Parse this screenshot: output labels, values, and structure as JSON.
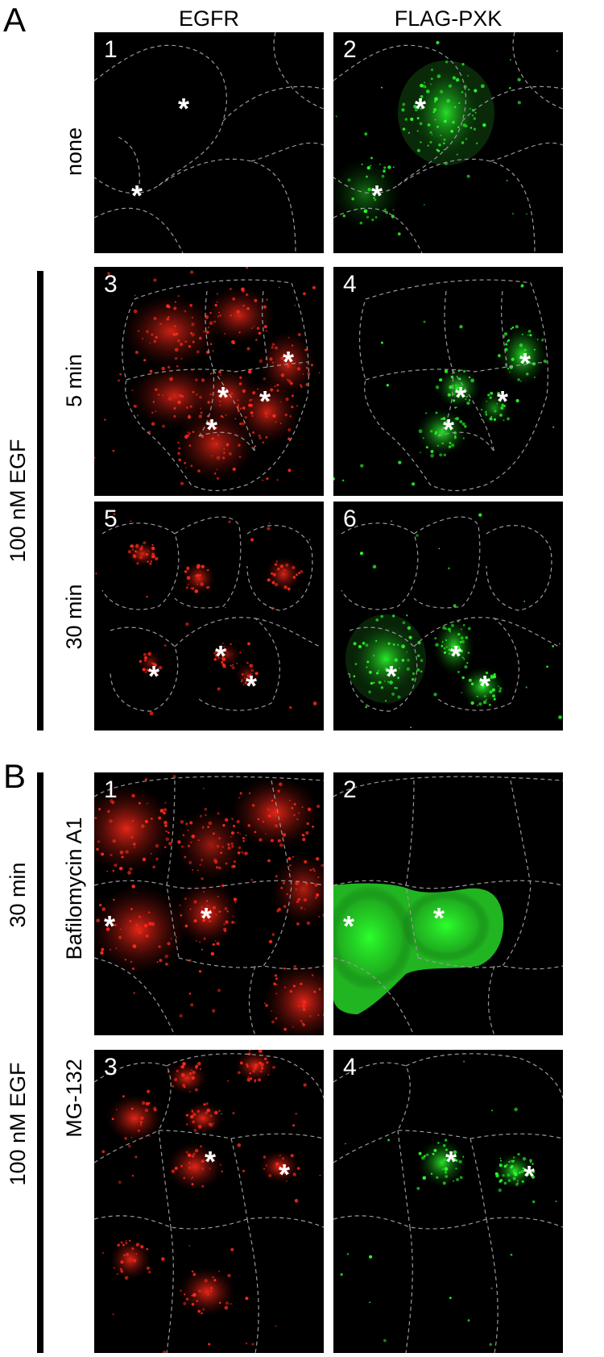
{
  "section_a": {
    "letter": "A",
    "columns": [
      "EGFR",
      "FLAG-PXK"
    ],
    "rows": [
      "none",
      "5 min",
      "30 min"
    ],
    "group_label": "100 nM EGF",
    "panels": [
      {
        "number": "1",
        "channel": "red",
        "stars": [
          "*",
          "*"
        ]
      },
      {
        "number": "2",
        "channel": "green",
        "stars": [
          "*",
          "*"
        ]
      },
      {
        "number": "3",
        "channel": "red",
        "stars": [
          "*",
          "*",
          "*",
          "*"
        ]
      },
      {
        "number": "4",
        "channel": "green",
        "stars": [
          "*",
          "*",
          "*",
          "*"
        ]
      },
      {
        "number": "5",
        "channel": "red",
        "stars": [
          "*",
          "*",
          "*"
        ]
      },
      {
        "number": "6",
        "channel": "green",
        "stars": [
          "*",
          "*",
          "*"
        ]
      }
    ]
  },
  "section_b": {
    "letter": "B",
    "rows": [
      "Bafilomycin A1",
      "MG-132"
    ],
    "group_label_time": "30 min",
    "group_label_egf": "100 nM EGF",
    "panels": [
      {
        "number": "1",
        "channel": "red",
        "stars": [
          "*",
          "*"
        ]
      },
      {
        "number": "2",
        "channel": "green",
        "stars": [
          "*",
          "*"
        ]
      },
      {
        "number": "3",
        "channel": "red",
        "stars": [
          "*",
          "*"
        ]
      },
      {
        "number": "4",
        "channel": "green",
        "stars": [
          "*",
          "*"
        ]
      }
    ]
  },
  "colors": {
    "red_channel": "#ff2a1a",
    "green_channel": "#2cff2c",
    "cell_outline": "#9a9a9a"
  }
}
